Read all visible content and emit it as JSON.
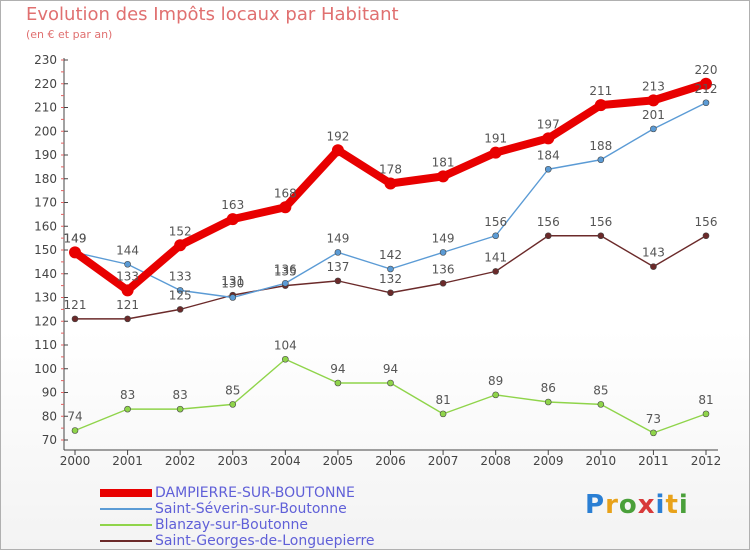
{
  "chart_data": {
    "type": "line",
    "title": "Evolution des Impôts locaux par Habitant",
    "subtitle": "(en € et par an)",
    "xlabel": "",
    "ylabel": "",
    "x": [
      "2000",
      "2001",
      "2002",
      "2003",
      "2004",
      "2005",
      "2006",
      "2007",
      "2008",
      "2009",
      "2010",
      "2011",
      "2012"
    ],
    "ylim": [
      70,
      230
    ],
    "yticks": [
      70,
      80,
      90,
      100,
      110,
      120,
      130,
      140,
      150,
      160,
      170,
      180,
      190,
      200,
      210,
      220,
      230
    ],
    "grid": false,
    "legend_position": "bottom-left",
    "series": [
      {
        "name": "DAMPIERRE-SUR-BOUTONNE",
        "color": "#e80000",
        "values": [
          149,
          133,
          152,
          163,
          168,
          192,
          178,
          181,
          191,
          197,
          211,
          213,
          220
        ],
        "labels": [
          "149",
          "133",
          "152",
          "163",
          "168",
          "192",
          "178",
          "181",
          "191",
          "197",
          "211",
          "213",
          "220"
        ]
      },
      {
        "name": "Saint-Séverin-sur-Boutonne",
        "color": "#5b9bd5",
        "values": [
          149,
          144,
          133,
          130,
          136,
          149,
          142,
          149,
          156,
          184,
          188,
          201,
          212
        ],
        "labels": [
          "149",
          "144",
          "133",
          "130",
          "136",
          "149",
          "142",
          "149",
          "156",
          "184",
          "188",
          "201",
          "212"
        ]
      },
      {
        "name": "Blanzay-sur-Boutonne",
        "color": "#8fd44a",
        "values": [
          74,
          83,
          83,
          85,
          104,
          94,
          94,
          81,
          89,
          86,
          85,
          73,
          81
        ],
        "labels": [
          "74",
          "83",
          "83",
          "85",
          "104",
          "94",
          "94",
          "81",
          "89",
          "86",
          "85",
          "73",
          "81"
        ]
      },
      {
        "name": "Saint-Georges-de-Longuepierre",
        "color": "#6b2a2a",
        "values": [
          121,
          121,
          125,
          131,
          135,
          137,
          132,
          136,
          141,
          156,
          156,
          143,
          156
        ],
        "labels": [
          "121",
          "121",
          "125",
          "131",
          "135",
          "137",
          "132",
          "136",
          "141",
          "156",
          "156",
          "143",
          "156"
        ]
      }
    ]
  },
  "brand": {
    "text": "Proxiti"
  }
}
